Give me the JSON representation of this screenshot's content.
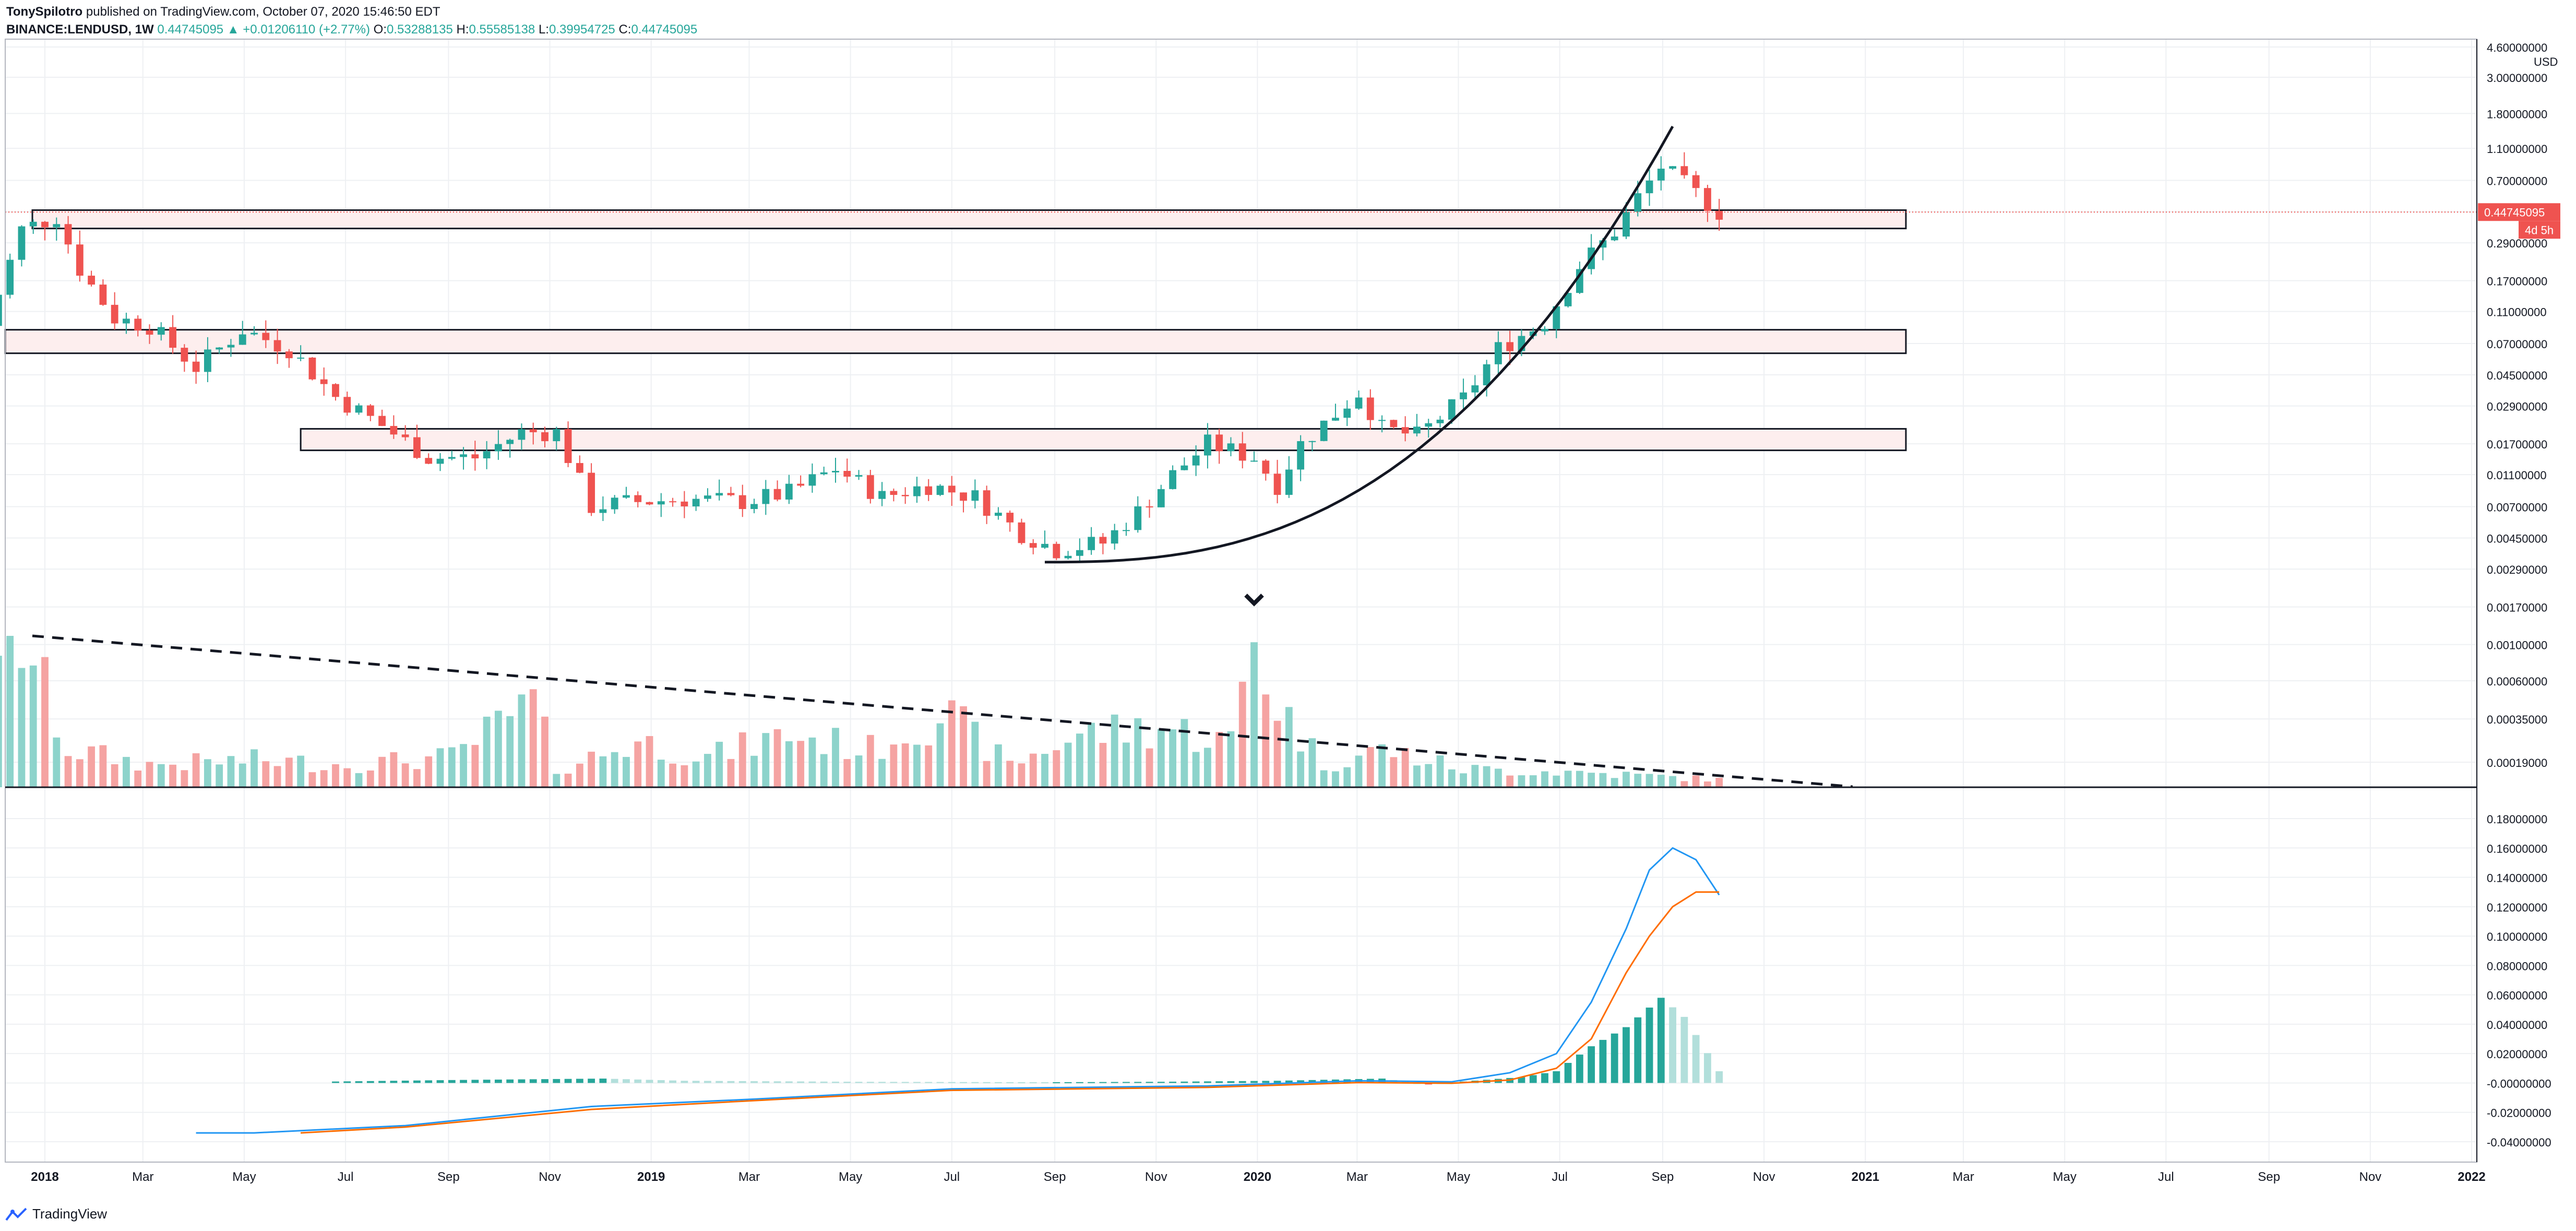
{
  "header": {
    "author": "TonySpilotro",
    "published": "published on TradingView.com, October 07, 2020 15:46:50 EDT",
    "symbol": "BINANCE:LENDUSD, 1W",
    "last": "0.44745095",
    "change_arrow": "▲",
    "change": "+0.01206110 (+2.77%)",
    "open_label": "O:",
    "open": "0.53288135",
    "high_label": "H:",
    "high": "0.55585138",
    "low_label": "L:",
    "low": "0.39954725",
    "close_label": "C:",
    "close": "0.44745095"
  },
  "footer": {
    "brand": "TradingView"
  },
  "colors": {
    "up": "#26a69a",
    "down": "#ef5350",
    "vol_up": "#8dd3cb",
    "vol_down": "#f5a3a2",
    "macd": "#2196f3",
    "signal": "#ff6d00",
    "grid": "#eef0f3",
    "zone_fill": "#fdeeee",
    "price_tag": "#ef5350"
  },
  "chart_data": {
    "type": "candlestick",
    "scale": "log",
    "currency": "USD",
    "last_price_label": "0.44745095",
    "countdown_label": "4d 5h",
    "price_ticks": [
      "4.60000000",
      "3.00000000",
      "1.80000000",
      "1.10000000",
      "0.70000000",
      "0.45000000",
      "0.29000000",
      "0.17000000",
      "0.11000000",
      "0.07000000",
      "0.04500000",
      "0.02900000",
      "0.01700000",
      "0.01100000",
      "0.00700000",
      "0.00450000",
      "0.00290000",
      "0.00170000",
      "0.00100000",
      "0.00060000",
      "0.00035000",
      "0.00019000"
    ],
    "macd_ticks": [
      "0.18000000",
      "0.16000000",
      "0.14000000",
      "0.12000000",
      "0.10000000",
      "0.08000000",
      "0.06000000",
      "0.04000000",
      "0.02000000",
      "-0.00000000",
      "-0.02000000",
      "-0.04000000"
    ],
    "time_ticks": [
      "2018",
      "Mar",
      "May",
      "Jul",
      "Sep",
      "Nov",
      "2019",
      "Mar",
      "May",
      "Jul",
      "Sep",
      "Nov",
      "2020",
      "Mar",
      "May",
      "Jul",
      "Sep",
      "Nov",
      "2021",
      "Mar",
      "May",
      "Jul",
      "Sep",
      "Nov",
      "2022"
    ],
    "time_tick_dates": [
      "2018-01-01",
      "2018-03-01",
      "2018-05-01",
      "2018-07-01",
      "2018-09-01",
      "2018-11-01",
      "2019-01-01",
      "2019-03-01",
      "2019-05-01",
      "2019-07-01",
      "2019-09-01",
      "2019-11-01",
      "2020-01-01",
      "2020-03-01",
      "2020-05-01",
      "2020-07-01",
      "2020-09-01",
      "2020-11-01",
      "2021-01-01",
      "2021-03-01",
      "2021-05-01",
      "2021-07-01",
      "2021-09-01",
      "2021-11-01",
      "2022-01-01"
    ],
    "close_anchors": [
      [
        "2017-11-27",
        0.09
      ],
      [
        "2017-12-18",
        0.35
      ],
      [
        "2018-01-08",
        0.42
      ],
      [
        "2018-01-22",
        0.2
      ],
      [
        "2018-02-12",
        0.1
      ],
      [
        "2018-03-05",
        0.09
      ],
      [
        "2018-04-02",
        0.05
      ],
      [
        "2018-04-30",
        0.085
      ],
      [
        "2018-05-28",
        0.065
      ],
      [
        "2018-06-25",
        0.033
      ],
      [
        "2018-07-23",
        0.022
      ],
      [
        "2018-08-20",
        0.014
      ],
      [
        "2018-09-17",
        0.014
      ],
      [
        "2018-10-15",
        0.02
      ],
      [
        "2018-11-05",
        0.02
      ],
      [
        "2018-11-26",
        0.007
      ],
      [
        "2018-12-24",
        0.0075
      ],
      [
        "2019-01-21",
        0.0078
      ],
      [
        "2019-02-25",
        0.0075
      ],
      [
        "2019-03-25",
        0.0085
      ],
      [
        "2019-04-22",
        0.012
      ],
      [
        "2019-05-20",
        0.008
      ],
      [
        "2019-06-17",
        0.0095
      ],
      [
        "2019-07-15",
        0.008
      ],
      [
        "2019-08-12",
        0.0048
      ],
      [
        "2019-09-02",
        0.0038
      ],
      [
        "2019-09-30",
        0.0042
      ],
      [
        "2019-10-21",
        0.0065
      ],
      [
        "2019-11-11",
        0.011
      ],
      [
        "2019-12-02",
        0.017
      ],
      [
        "2019-12-30",
        0.014
      ],
      [
        "2020-01-13",
        0.0095
      ],
      [
        "2020-01-27",
        0.017
      ],
      [
        "2020-02-17",
        0.026
      ],
      [
        "2020-03-02",
        0.035
      ],
      [
        "2020-03-16",
        0.021
      ],
      [
        "2020-04-06",
        0.019
      ],
      [
        "2020-05-04",
        0.032
      ],
      [
        "2020-05-25",
        0.065
      ],
      [
        "2020-06-22",
        0.095
      ],
      [
        "2020-07-13",
        0.21
      ],
      [
        "2020-08-03",
        0.34
      ],
      [
        "2020-08-17",
        0.55
      ],
      [
        "2020-08-31",
        0.85
      ],
      [
        "2020-09-21",
        0.58
      ],
      [
        "2020-10-05",
        0.447
      ]
    ],
    "volume_profile": [
      [
        "2017-11-27",
        0.5
      ],
      [
        "2017-12-18",
        1.0
      ],
      [
        "2018-01-15",
        0.25
      ],
      [
        "2018-03-05",
        0.15
      ],
      [
        "2018-05-07",
        0.18
      ],
      [
        "2018-07-02",
        0.15
      ],
      [
        "2018-09-03",
        0.2
      ],
      [
        "2018-10-22",
        0.55
      ],
      [
        "2018-11-05",
        0.12
      ],
      [
        "2018-12-24",
        0.3
      ],
      [
        "2019-02-04",
        0.2
      ],
      [
        "2019-03-25",
        0.35
      ],
      [
        "2019-05-13",
        0.25
      ],
      [
        "2019-06-24",
        0.5
      ],
      [
        "2019-08-05",
        0.15
      ],
      [
        "2019-09-16",
        0.35
      ],
      [
        "2019-11-04",
        0.4
      ],
      [
        "2019-12-16",
        0.3
      ],
      [
        "2019-12-30",
        1.0
      ],
      [
        "2020-01-13",
        0.55
      ],
      [
        "2020-02-10",
        0.15
      ],
      [
        "2020-03-16",
        0.25
      ],
      [
        "2020-05-04",
        0.12
      ],
      [
        "2020-07-13",
        0.1
      ],
      [
        "2020-10-05",
        0.05
      ]
    ],
    "volume_up_color": "#8dd3cb",
    "volume_down_color": "#f5a3a2",
    "macd": {
      "series": [
        {
          "color": "#2196f3",
          "points": [
            [
              "2018-04-02",
              -0.034
            ],
            [
              "2018-05-07",
              -0.034
            ],
            [
              "2018-08-06",
              -0.029
            ],
            [
              "2018-11-26",
              -0.016
            ],
            [
              "2019-03-04",
              -0.011
            ],
            [
              "2019-07-01",
              -0.004
            ],
            [
              "2019-12-02",
              -0.002
            ],
            [
              "2020-03-02",
              0.0015
            ],
            [
              "2020-04-27",
              0.0008
            ],
            [
              "2020-06-01",
              0.007
            ],
            [
              "2020-06-29",
              0.02
            ],
            [
              "2020-07-20",
              0.055
            ],
            [
              "2020-08-10",
              0.105
            ],
            [
              "2020-08-24",
              0.145
            ],
            [
              "2020-09-07",
              0.16
            ],
            [
              "2020-09-21",
              0.152
            ],
            [
              "2020-10-05",
              0.128
            ]
          ]
        },
        {
          "color": "#ff6d00",
          "points": [
            [
              "2018-06-04",
              -0.034
            ],
            [
              "2018-08-06",
              -0.03
            ],
            [
              "2018-11-26",
              -0.018
            ],
            [
              "2019-03-04",
              -0.012
            ],
            [
              "2019-07-01",
              -0.005
            ],
            [
              "2019-12-02",
              -0.003
            ],
            [
              "2020-03-02",
              0.0003
            ],
            [
              "2020-04-27",
              -0.0002
            ],
            [
              "2020-06-01",
              0.002
            ],
            [
              "2020-06-29",
              0.01
            ],
            [
              "2020-07-20",
              0.03
            ],
            [
              "2020-08-10",
              0.075
            ],
            [
              "2020-08-24",
              0.1
            ],
            [
              "2020-09-07",
              0.12
            ],
            [
              "2020-09-21",
              0.13
            ],
            [
              "2020-10-05",
              0.13
            ]
          ]
        }
      ],
      "histogram": [
        [
          "2018-06-25",
          0.001
        ],
        [
          "2018-09-03",
          0.002
        ],
        [
          "2018-12-03",
          0.003
        ],
        [
          "2019-01-21",
          0.0015
        ],
        [
          "2019-05-06",
          0.0008
        ],
        [
          "2019-08-26",
          0.0005
        ],
        [
          "2019-11-04",
          0.0008
        ],
        [
          "2020-01-13",
          0.0015
        ],
        [
          "2020-03-16",
          0.003
        ],
        [
          "2020-04-13",
          -0.001
        ],
        [
          "2020-05-04",
          0.001
        ],
        [
          "2020-06-08",
          0.004
        ],
        [
          "2020-06-29",
          0.008
        ],
        [
          "2020-07-20",
          0.025
        ],
        [
          "2020-08-10",
          0.038
        ],
        [
          "2020-08-31",
          0.058
        ],
        [
          "2020-09-14",
          0.045
        ],
        [
          "2020-10-05",
          0.008
        ]
      ]
    }
  }
}
